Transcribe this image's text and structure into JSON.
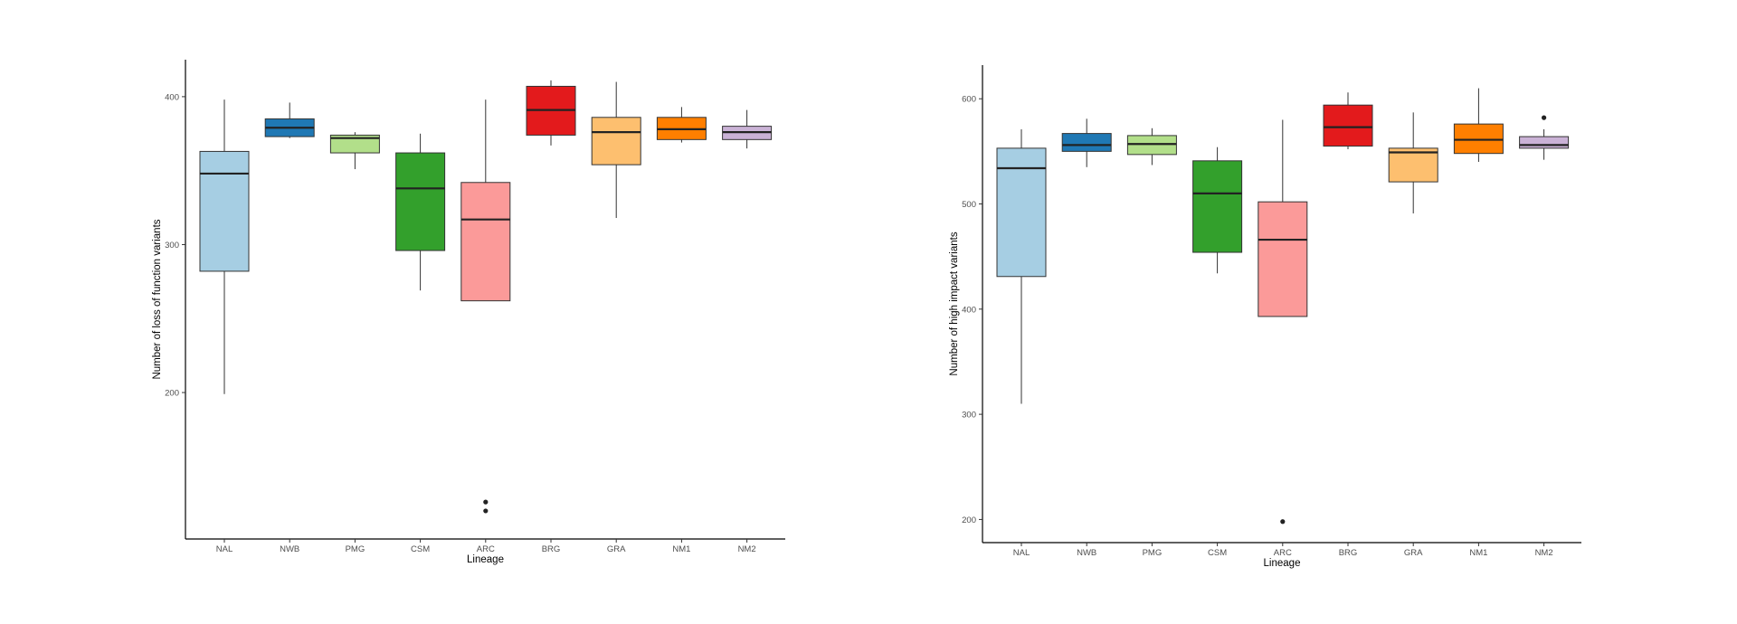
{
  "chart_data": [
    {
      "type": "boxplot",
      "xlabel": "Lineage",
      "ylabel": "Number of loss of function variants",
      "ylim": [
        101,
        425
      ],
      "yticks": [
        200,
        300,
        400
      ],
      "grid": false,
      "legend": "none",
      "categories": [
        "NAL",
        "NWB",
        "PMG",
        "CSM",
        "ARC",
        "BRG",
        "GRA",
        "NM1",
        "NM2"
      ],
      "colors": [
        "#A6CEE3",
        "#1F78B4",
        "#B2DF8A",
        "#33A02C",
        "#FB9A99",
        "#E31A1C",
        "#FDBF6F",
        "#FF7F00",
        "#CAB2D6"
      ],
      "boxes": [
        {
          "min": 199,
          "q1": 282,
          "median": 348,
          "q3": 363,
          "max": 398,
          "outliers": []
        },
        {
          "min": 372,
          "q1": 373,
          "median": 379,
          "q3": 385,
          "max": 396,
          "outliers": []
        },
        {
          "min": 351,
          "q1": 362,
          "median": 372,
          "q3": 374,
          "max": 376,
          "outliers": []
        },
        {
          "min": 269,
          "q1": 296,
          "median": 338,
          "q3": 362,
          "max": 375,
          "outliers": []
        },
        {
          "min": 262,
          "q1": 262,
          "median": 317,
          "q3": 342,
          "max": 398,
          "outliers": [
            120,
            126
          ]
        },
        {
          "min": 367,
          "q1": 374,
          "median": 391,
          "q3": 407,
          "max": 411,
          "outliers": []
        },
        {
          "min": 318,
          "q1": 354,
          "median": 376,
          "q3": 386,
          "max": 410,
          "outliers": []
        },
        {
          "min": 369,
          "q1": 371,
          "median": 378,
          "q3": 386,
          "max": 393,
          "outliers": []
        },
        {
          "min": 365,
          "q1": 371,
          "median": 376,
          "q3": 380,
          "max": 391,
          "outliers": []
        }
      ]
    },
    {
      "type": "boxplot",
      "xlabel": "Lineage",
      "ylabel": "Number of high impact variants",
      "ylim": [
        178,
        632
      ],
      "yticks": [
        200,
        300,
        400,
        500,
        600
      ],
      "grid": false,
      "legend": "none",
      "categories": [
        "NAL",
        "NWB",
        "PMG",
        "CSM",
        "ARC",
        "BRG",
        "GRA",
        "NM1",
        "NM2"
      ],
      "colors": [
        "#A6CEE3",
        "#1F78B4",
        "#B2DF8A",
        "#33A02C",
        "#FB9A99",
        "#E31A1C",
        "#FDBF6F",
        "#FF7F00",
        "#CAB2D6"
      ],
      "boxes": [
        {
          "min": 310,
          "q1": 431,
          "median": 534,
          "q3": 553,
          "max": 571,
          "outliers": []
        },
        {
          "min": 535,
          "q1": 550,
          "median": 556,
          "q3": 567,
          "max": 581,
          "outliers": []
        },
        {
          "min": 537,
          "q1": 547,
          "median": 557,
          "q3": 565,
          "max": 572,
          "outliers": []
        },
        {
          "min": 434,
          "q1": 454,
          "median": 510,
          "q3": 541,
          "max": 554,
          "outliers": []
        },
        {
          "min": 393,
          "q1": 393,
          "median": 466,
          "q3": 502,
          "max": 580,
          "outliers": [
            198
          ]
        },
        {
          "min": 552,
          "q1": 555,
          "median": 573,
          "q3": 594,
          "max": 606,
          "outliers": []
        },
        {
          "min": 491,
          "q1": 521,
          "median": 549,
          "q3": 553,
          "max": 587,
          "outliers": []
        },
        {
          "min": 540,
          "q1": 548,
          "median": 561,
          "q3": 576,
          "max": 610,
          "outliers": []
        },
        {
          "min": 542,
          "q1": 553,
          "median": 556,
          "q3": 564,
          "max": 571,
          "outliers": [
            582
          ]
        }
      ]
    }
  ]
}
